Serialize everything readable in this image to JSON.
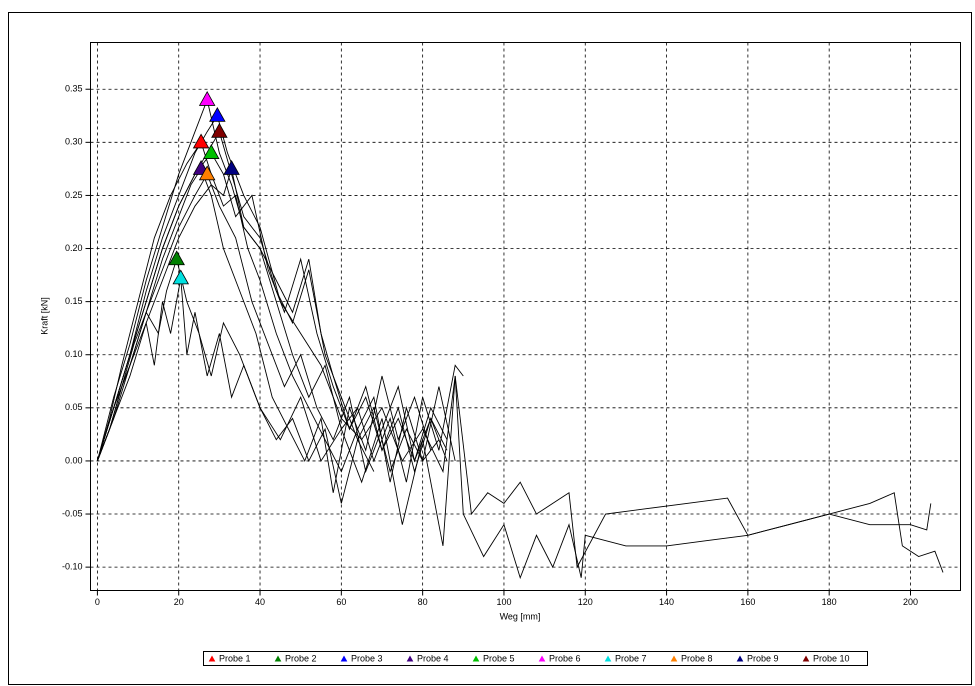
{
  "chart_data": {
    "type": "line",
    "x_label": "Weg [mm]",
    "y_label": "Kraft [kN]",
    "xlim": [
      -1.7,
      212.3
    ],
    "ylim": [
      -0.122,
      0.394
    ],
    "xticks": [
      0,
      20,
      40,
      60,
      80,
      100,
      120,
      140,
      160,
      180,
      200
    ],
    "yticks": [
      {
        "value": -0.1,
        "label": "-0.10"
      },
      -0.05,
      {
        "value": 0,
        "label": "0.00"
      },
      0.05,
      {
        "value": 0.1,
        "label": "0.10"
      },
      0.15,
      {
        "value": 0.2,
        "label": "0.20"
      },
      0.25,
      {
        "value": 0.3,
        "label": "0.30"
      },
      0.35
    ],
    "grid": true,
    "line_color": "#000000",
    "legend": "bottom",
    "series": [
      {
        "name": "Probe 1",
        "color": "#ff0000",
        "x": [
          0,
          3,
          6,
          10,
          14,
          18,
          22,
          25.5,
          28,
          31,
          34,
          37,
          40,
          44,
          48,
          52,
          56,
          60,
          64,
          68,
          72,
          76,
          80,
          84,
          88
        ],
        "values": [
          0,
          0.04,
          0.09,
          0.15,
          0.21,
          0.25,
          0.28,
          0.3,
          0.27,
          0.24,
          0.25,
          0.2,
          0.17,
          0.12,
          0.08,
          0.05,
          0.02,
          -0.01,
          0.03,
          0.06,
          -0.02,
          0.05,
          0.0,
          0.07,
          0.0
        ]
      },
      {
        "name": "Probe 2",
        "color": "#008000",
        "x": [
          0,
          3,
          6,
          9,
          12,
          15,
          17,
          19.5,
          22,
          25,
          28,
          31,
          35,
          40,
          45,
          50,
          55,
          60,
          65,
          70,
          75,
          80,
          85,
          88,
          90,
          95,
          100,
          104,
          108,
          112,
          116,
          119,
          120,
          130,
          140,
          150,
          160,
          170,
          180,
          190,
          196,
          198,
          202,
          206,
          208
        ],
        "values": [
          0,
          0.03,
          0.07,
          0.11,
          0.14,
          0.12,
          0.16,
          0.19,
          0.15,
          0.12,
          0.08,
          0.13,
          0.1,
          0.05,
          0.02,
          0.06,
          0.0,
          0.03,
          -0.02,
          0.04,
          -0.06,
          0.02,
          -0.08,
          0.08,
          -0.05,
          -0.09,
          -0.06,
          -0.11,
          -0.07,
          -0.1,
          -0.06,
          -0.11,
          -0.07,
          -0.08,
          -0.08,
          -0.075,
          -0.07,
          -0.06,
          -0.05,
          -0.04,
          -0.03,
          -0.08,
          -0.09,
          -0.085,
          -0.105
        ]
      },
      {
        "name": "Probe 3",
        "color": "#0000ff",
        "x": [
          0,
          4,
          8,
          12,
          16,
          20,
          24,
          27,
          29.5,
          32,
          36,
          40,
          45,
          50,
          55,
          60,
          65,
          70,
          75,
          80,
          85,
          88,
          92,
          96,
          100,
          104,
          108,
          112,
          116,
          118,
          125,
          135,
          145,
          155,
          160,
          170,
          180,
          190,
          200,
          204,
          205
        ],
        "values": [
          0,
          0.05,
          0.1,
          0.16,
          0.21,
          0.25,
          0.29,
          0.31,
          0.325,
          0.29,
          0.25,
          0.22,
          0.15,
          0.12,
          0.09,
          0.04,
          0.02,
          0.05,
          0.0,
          0.03,
          -0.01,
          0.08,
          -0.05,
          -0.03,
          -0.04,
          -0.02,
          -0.05,
          -0.04,
          -0.03,
          -0.1,
          -0.05,
          -0.045,
          -0.04,
          -0.035,
          -0.07,
          -0.06,
          -0.05,
          -0.06,
          -0.06,
          -0.065,
          -0.04
        ]
      },
      {
        "name": "Probe 4",
        "color": "#400080",
        "x": [
          0,
          4,
          8,
          12,
          16,
          20,
          23,
          25.5,
          28,
          31,
          35,
          39,
          43,
          47,
          51,
          55,
          58,
          62,
          66,
          70,
          74,
          78,
          82
        ],
        "values": [
          0,
          0.04,
          0.09,
          0.14,
          0.19,
          0.23,
          0.26,
          0.275,
          0.25,
          0.2,
          0.16,
          0.12,
          0.06,
          0.03,
          0.0,
          0.04,
          -0.03,
          0.05,
          0.01,
          0.08,
          0.02,
          0.06,
          0.01
        ]
      },
      {
        "name": "Probe 5",
        "color": "#00c000",
        "x": [
          0,
          4,
          8,
          12,
          16,
          20,
          24,
          28,
          31,
          34,
          38,
          42,
          46,
          50,
          54,
          58,
          62,
          66,
          70,
          74,
          78,
          82,
          86
        ],
        "values": [
          0,
          0.05,
          0.1,
          0.15,
          0.2,
          0.24,
          0.27,
          0.29,
          0.27,
          0.23,
          0.25,
          0.18,
          0.14,
          0.19,
          0.12,
          0.07,
          0.03,
          0.06,
          0.01,
          0.04,
          0.0,
          0.05,
          0.02
        ]
      },
      {
        "name": "Probe 6",
        "color": "#ff00ff",
        "x": [
          0,
          4,
          8,
          12,
          16,
          20,
          24,
          27,
          30,
          33,
          36,
          40,
          44,
          48,
          52,
          55,
          58,
          62,
          66,
          70,
          74,
          78,
          82,
          86
        ],
        "values": [
          0,
          0.06,
          0.11,
          0.17,
          0.22,
          0.27,
          0.31,
          0.34,
          0.29,
          0.26,
          0.22,
          0.2,
          0.17,
          0.14,
          0.19,
          0.12,
          0.08,
          0.03,
          0.07,
          0.01,
          0.05,
          -0.01,
          0.04,
          0.0
        ]
      },
      {
        "name": "Probe 7",
        "color": "#00e0e0",
        "x": [
          0,
          3,
          6,
          9,
          12,
          14,
          16,
          18,
          20.5,
          22,
          24,
          27,
          30,
          33,
          36,
          40,
          44,
          48,
          52,
          56,
          60,
          64,
          68
        ],
        "values": [
          0,
          0.03,
          0.07,
          0.1,
          0.13,
          0.09,
          0.15,
          0.12,
          0.172,
          0.1,
          0.14,
          0.08,
          0.12,
          0.06,
          0.09,
          0.05,
          0.02,
          0.04,
          0.0,
          0.03,
          -0.04,
          0.02,
          -0.01
        ]
      },
      {
        "name": "Probe 8",
        "color": "#ff8000",
        "x": [
          0,
          4,
          8,
          12,
          16,
          20,
          24,
          27,
          30,
          34,
          38,
          42,
          46,
          50,
          54,
          58,
          62,
          66,
          70,
          74,
          78,
          82,
          86
        ],
        "values": [
          0,
          0.05,
          0.09,
          0.14,
          0.18,
          0.22,
          0.25,
          0.27,
          0.24,
          0.21,
          0.15,
          0.11,
          0.07,
          0.1,
          0.05,
          0.02,
          0.06,
          -0.01,
          0.03,
          0.07,
          0.0,
          0.04,
          0.01
        ]
      },
      {
        "name": "Probe 9",
        "color": "#000080",
        "x": [
          0,
          4,
          8,
          12,
          16,
          20,
          24,
          28,
          31,
          33,
          36,
          40,
          44,
          48,
          52,
          56,
          60,
          64,
          68,
          72,
          76,
          80,
          84,
          88,
          90
        ],
        "values": [
          0,
          0.04,
          0.08,
          0.13,
          0.17,
          0.21,
          0.24,
          0.26,
          0.25,
          0.275,
          0.22,
          0.2,
          0.15,
          0.1,
          0.06,
          0.09,
          0.03,
          0.05,
          0.0,
          0.04,
          -0.02,
          0.06,
          0.01,
          0.09,
          0.08
        ]
      },
      {
        "name": "Probe 10",
        "color": "#800000",
        "x": [
          0,
          4,
          8,
          12,
          16,
          20,
          24,
          27,
          30,
          33,
          36,
          40,
          44,
          48,
          52,
          56,
          60,
          64,
          68,
          72,
          76,
          80,
          84
        ],
        "values": [
          0,
          0.05,
          0.1,
          0.15,
          0.2,
          0.24,
          0.27,
          0.29,
          0.31,
          0.27,
          0.23,
          0.21,
          0.16,
          0.13,
          0.18,
          0.1,
          0.06,
          0.02,
          0.05,
          -0.01,
          0.03,
          0.0,
          0.02
        ]
      }
    ]
  }
}
